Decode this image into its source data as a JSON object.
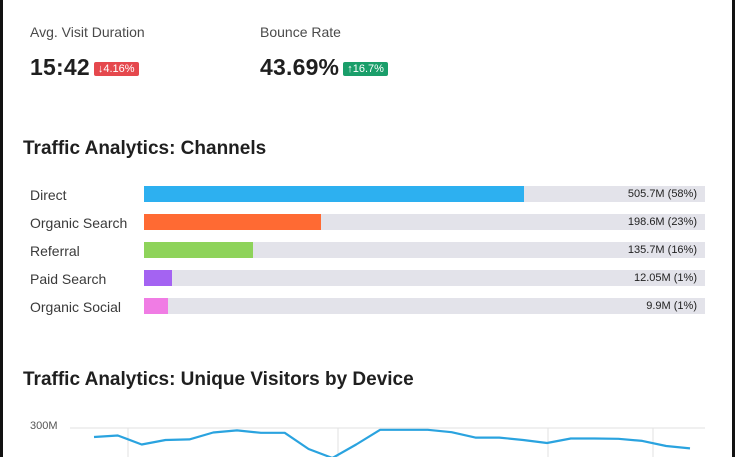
{
  "metrics": {
    "visit_duration": {
      "label": "Avg. Visit Duration",
      "value": "15:42",
      "change": "4.16%",
      "arrow": "↓",
      "color": "#e5484d"
    },
    "bounce_rate": {
      "label": "Bounce Rate",
      "value": "43.69%",
      "change": "16.7%",
      "arrow": "↑",
      "color": "#1a9e6a"
    }
  },
  "channels": {
    "title": "Traffic Analytics: Channels",
    "items": [
      {
        "name": "Direct",
        "value": "505.7M (58%)",
        "share": 0.678,
        "color": "#2db0f0"
      },
      {
        "name": "Organic Search",
        "value": "198.6M (23%)",
        "share": 0.315,
        "color": "#ff6a33"
      },
      {
        "name": "Referral",
        "value": "135.7M (16%)",
        "share": 0.194,
        "color": "#8ed35a"
      },
      {
        "name": "Paid Search",
        "value": "12.05M (1%)",
        "share": 0.05,
        "color": "#a463f2"
      },
      {
        "name": "Organic Social",
        "value": "9.9M (1%)",
        "share": 0.042,
        "color": "#f07ce4"
      }
    ]
  },
  "device": {
    "title": "Traffic Analytics: Unique Visitors by Device",
    "ytick": "300M",
    "line_color": "#2aa3df"
  },
  "chart_data": {
    "type": "line",
    "title": "Traffic Analytics: Unique Visitors by Device",
    "y_ticks": [
      "300M"
    ],
    "x": [
      0,
      1,
      2,
      3,
      4,
      5,
      6,
      7,
      8,
      9,
      10,
      11,
      12,
      13,
      14,
      15,
      16,
      17,
      18,
      19,
      20,
      21,
      22,
      23,
      24,
      25
    ],
    "series": [
      {
        "values": [
          270,
          275,
          245,
          260,
          262,
          285,
          292,
          284,
          284,
          230,
          200,
          245,
          294,
          294,
          294,
          286,
          268,
          268,
          260,
          250,
          265,
          265,
          264,
          257,
          240,
          232
        ]
      }
    ]
  }
}
